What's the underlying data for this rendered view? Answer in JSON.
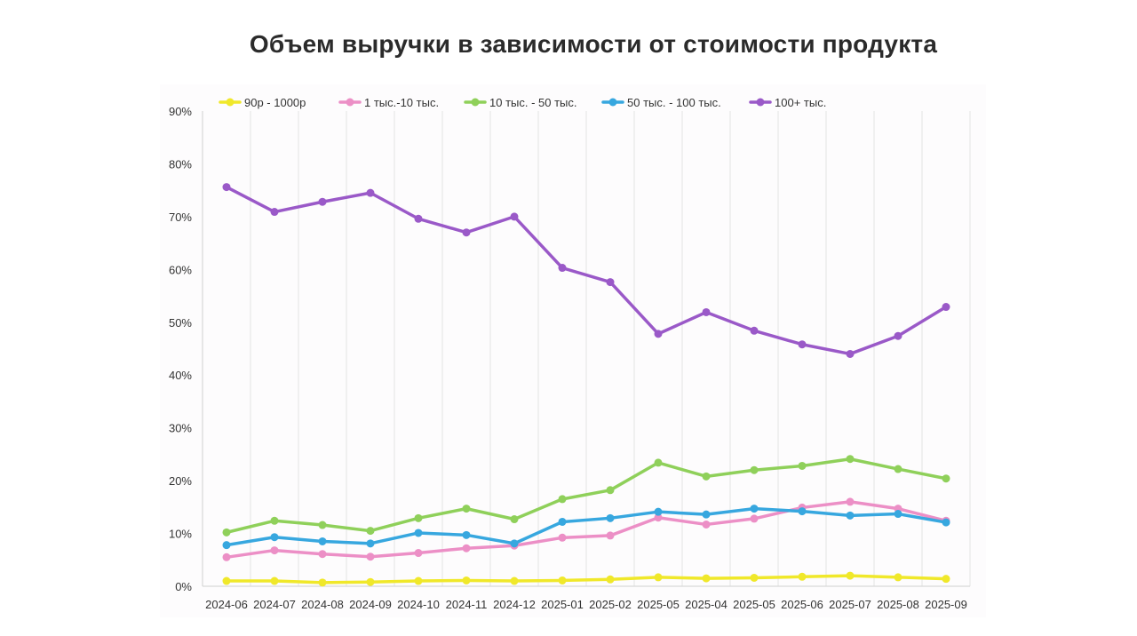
{
  "chart_data": {
    "type": "line",
    "title": "Объем выручки в зависимости от стоимости продукта",
    "xlabel": "",
    "ylabel": "",
    "categories": [
      "2024-06",
      "2024-07",
      "2024-08",
      "2024-09",
      "2024-10",
      "2024-11",
      "2024-12",
      "2025-01",
      "2025-02",
      "2025-05",
      "2025-04",
      "2025-05",
      "2025-06",
      "2025-07",
      "2025-08",
      "2025-09"
    ],
    "ylim": [
      0,
      90
    ],
    "yticks": [
      "0%",
      "10%",
      "20%",
      "30%",
      "40%",
      "50%",
      "60%",
      "70%",
      "80%",
      "90%"
    ],
    "grid": "vertical",
    "legend_position": "top",
    "series": [
      {
        "name": "90р - 1000р",
        "color": "#f0e82a",
        "values": [
          1.0,
          1.0,
          0.7,
          0.8,
          1.0,
          1.1,
          1.0,
          1.1,
          1.3,
          1.7,
          1.5,
          1.6,
          1.8,
          2.0,
          1.7,
          1.4
        ]
      },
      {
        "name": "1 тыс.-10 тыс.",
        "color": "#ec8fc6",
        "values": [
          5.5,
          6.8,
          6.1,
          5.6,
          6.3,
          7.2,
          7.7,
          9.2,
          9.6,
          13.0,
          11.7,
          12.8,
          14.9,
          16.0,
          14.7,
          12.4
        ]
      },
      {
        "name": "10 тыс. - 50 тыс.",
        "color": "#8fd05a",
        "values": [
          10.2,
          12.4,
          11.6,
          10.5,
          12.9,
          14.7,
          12.7,
          16.5,
          18.2,
          23.4,
          20.8,
          22.0,
          22.8,
          24.1,
          22.2,
          20.4
        ]
      },
      {
        "name": "50 тыс. - 100 тыс.",
        "color": "#37a7df",
        "values": [
          7.8,
          9.3,
          8.5,
          8.1,
          10.1,
          9.7,
          8.1,
          12.2,
          12.9,
          14.1,
          13.6,
          14.7,
          14.2,
          13.4,
          13.7,
          12.1
        ]
      },
      {
        "name": "100+ тыс.",
        "color": "#9a59c8",
        "values": [
          75.6,
          70.9,
          72.8,
          74.5,
          69.6,
          67.0,
          70.0,
          60.3,
          57.6,
          47.8,
          51.9,
          48.4,
          45.8,
          44.0,
          47.4,
          52.9
        ]
      }
    ]
  }
}
